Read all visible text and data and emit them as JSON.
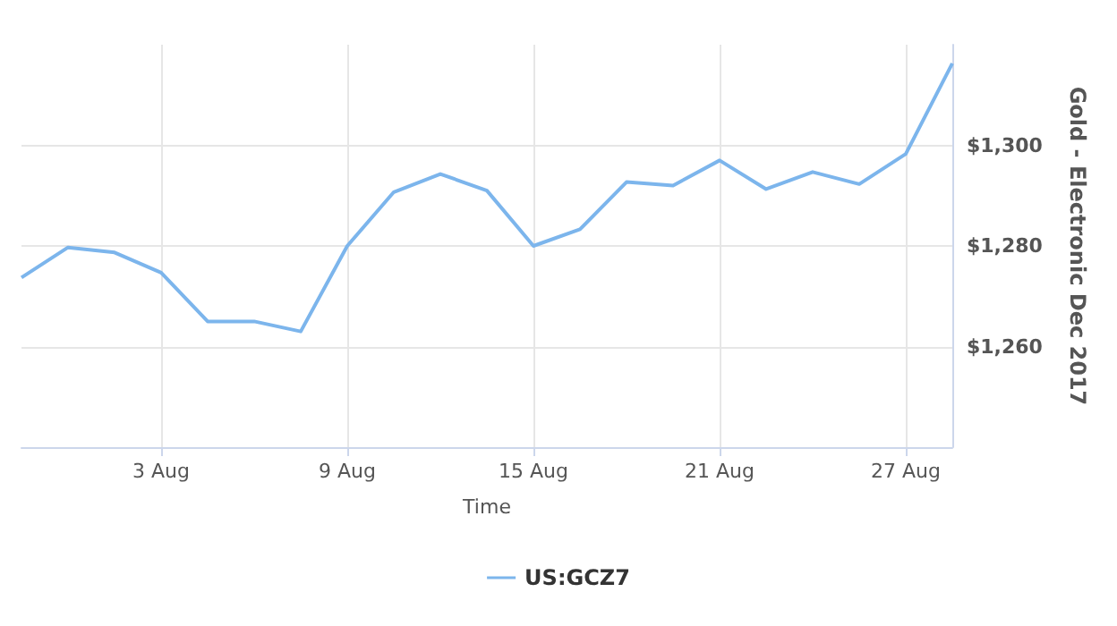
{
  "chart_data": {
    "type": "line",
    "xlabel": "Time",
    "ylabel": "Gold - Electronic Dec 2017",
    "categories": [
      null,
      null,
      null,
      "3 Aug",
      null,
      null,
      null,
      "9 Aug",
      null,
      null,
      null,
      "15 Aug",
      null,
      null,
      null,
      "21 Aug",
      null,
      null,
      null,
      "27 Aug",
      null
    ],
    "series": [
      {
        "name": "US:GCZ7",
        "color": "#7cb5ec",
        "values": [
          1273.7,
          1279.7,
          1278.7,
          1274.7,
          1265,
          1265,
          1263,
          1280,
          1290.7,
          1294.3,
          1291,
          1280,
          1283.3,
          1292.7,
          1292,
          1297,
          1291.3,
          1294.7,
          1292.3,
          1298.3,
          1316.3
        ]
      }
    ],
    "ylim": [
      1240,
      1320
    ],
    "yticks": [
      {
        "value": 1260,
        "label": "$1,260"
      },
      {
        "value": 1280,
        "label": "$1,280"
      },
      {
        "value": 1300,
        "label": "$1,300"
      }
    ],
    "grid": true,
    "legend": "bottom",
    "marker": "none",
    "line_style": "solid"
  }
}
